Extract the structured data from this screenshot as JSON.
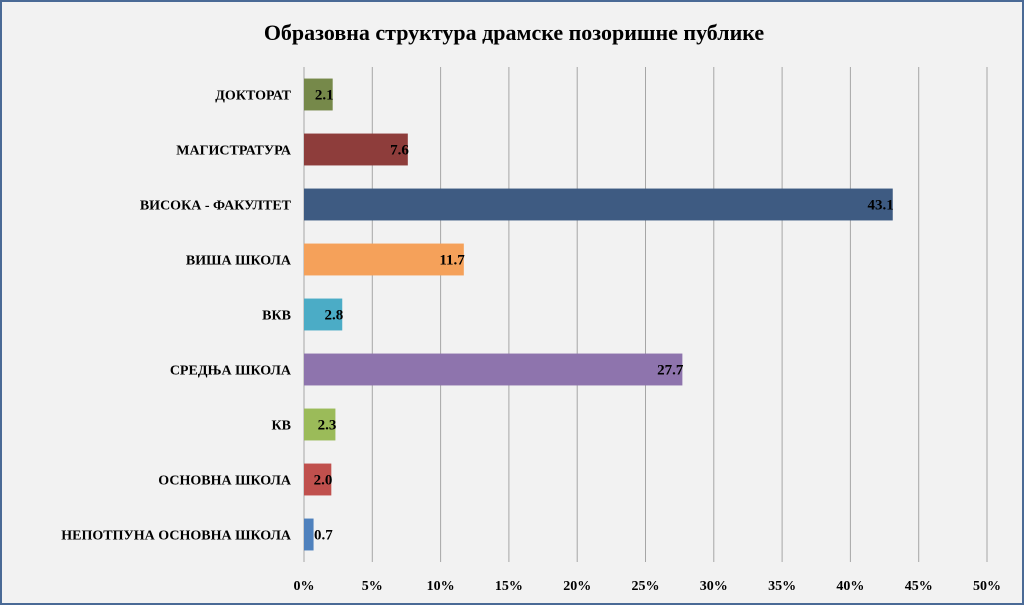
{
  "chart_data": {
    "type": "bar",
    "orientation": "horizontal",
    "title": "Образовна структура драмске позоришне публике",
    "categories": [
      "ДОКТОРАТ",
      "МАГИСТРАТУРА",
      "ВИСОКА - ФАКУЛТЕТ",
      "ВИША ШКОЛА",
      "ВКВ",
      "СРЕДЊА ШКОЛА",
      "КВ",
      "ОСНОВНА ШКОЛА",
      "НЕПОТПУНА ОСНОВНА ШКОЛА"
    ],
    "values": [
      2.1,
      7.6,
      43.1,
      11.7,
      2.8,
      27.7,
      2.3,
      2.0,
      0.7
    ],
    "data_labels": [
      "2.1",
      "7.6",
      "43.1",
      "11.7",
      "2.8",
      "27.7",
      "2.3",
      "2.0",
      "0.7"
    ],
    "colors": [
      "#76894a",
      "#8e3d3b",
      "#3e5b82",
      "#f5a15a",
      "#4bacc6",
      "#8e74ad",
      "#9bbb59",
      "#c0504d",
      "#4f81bd"
    ],
    "x_ticks": [
      "0%",
      "5%",
      "10%",
      "15%",
      "20%",
      "25%",
      "30%",
      "35%",
      "40%",
      "45%",
      "50%"
    ],
    "xlim": [
      0,
      50
    ],
    "xlabel": "",
    "ylabel": "",
    "grid": "vertical",
    "legend": "none"
  }
}
